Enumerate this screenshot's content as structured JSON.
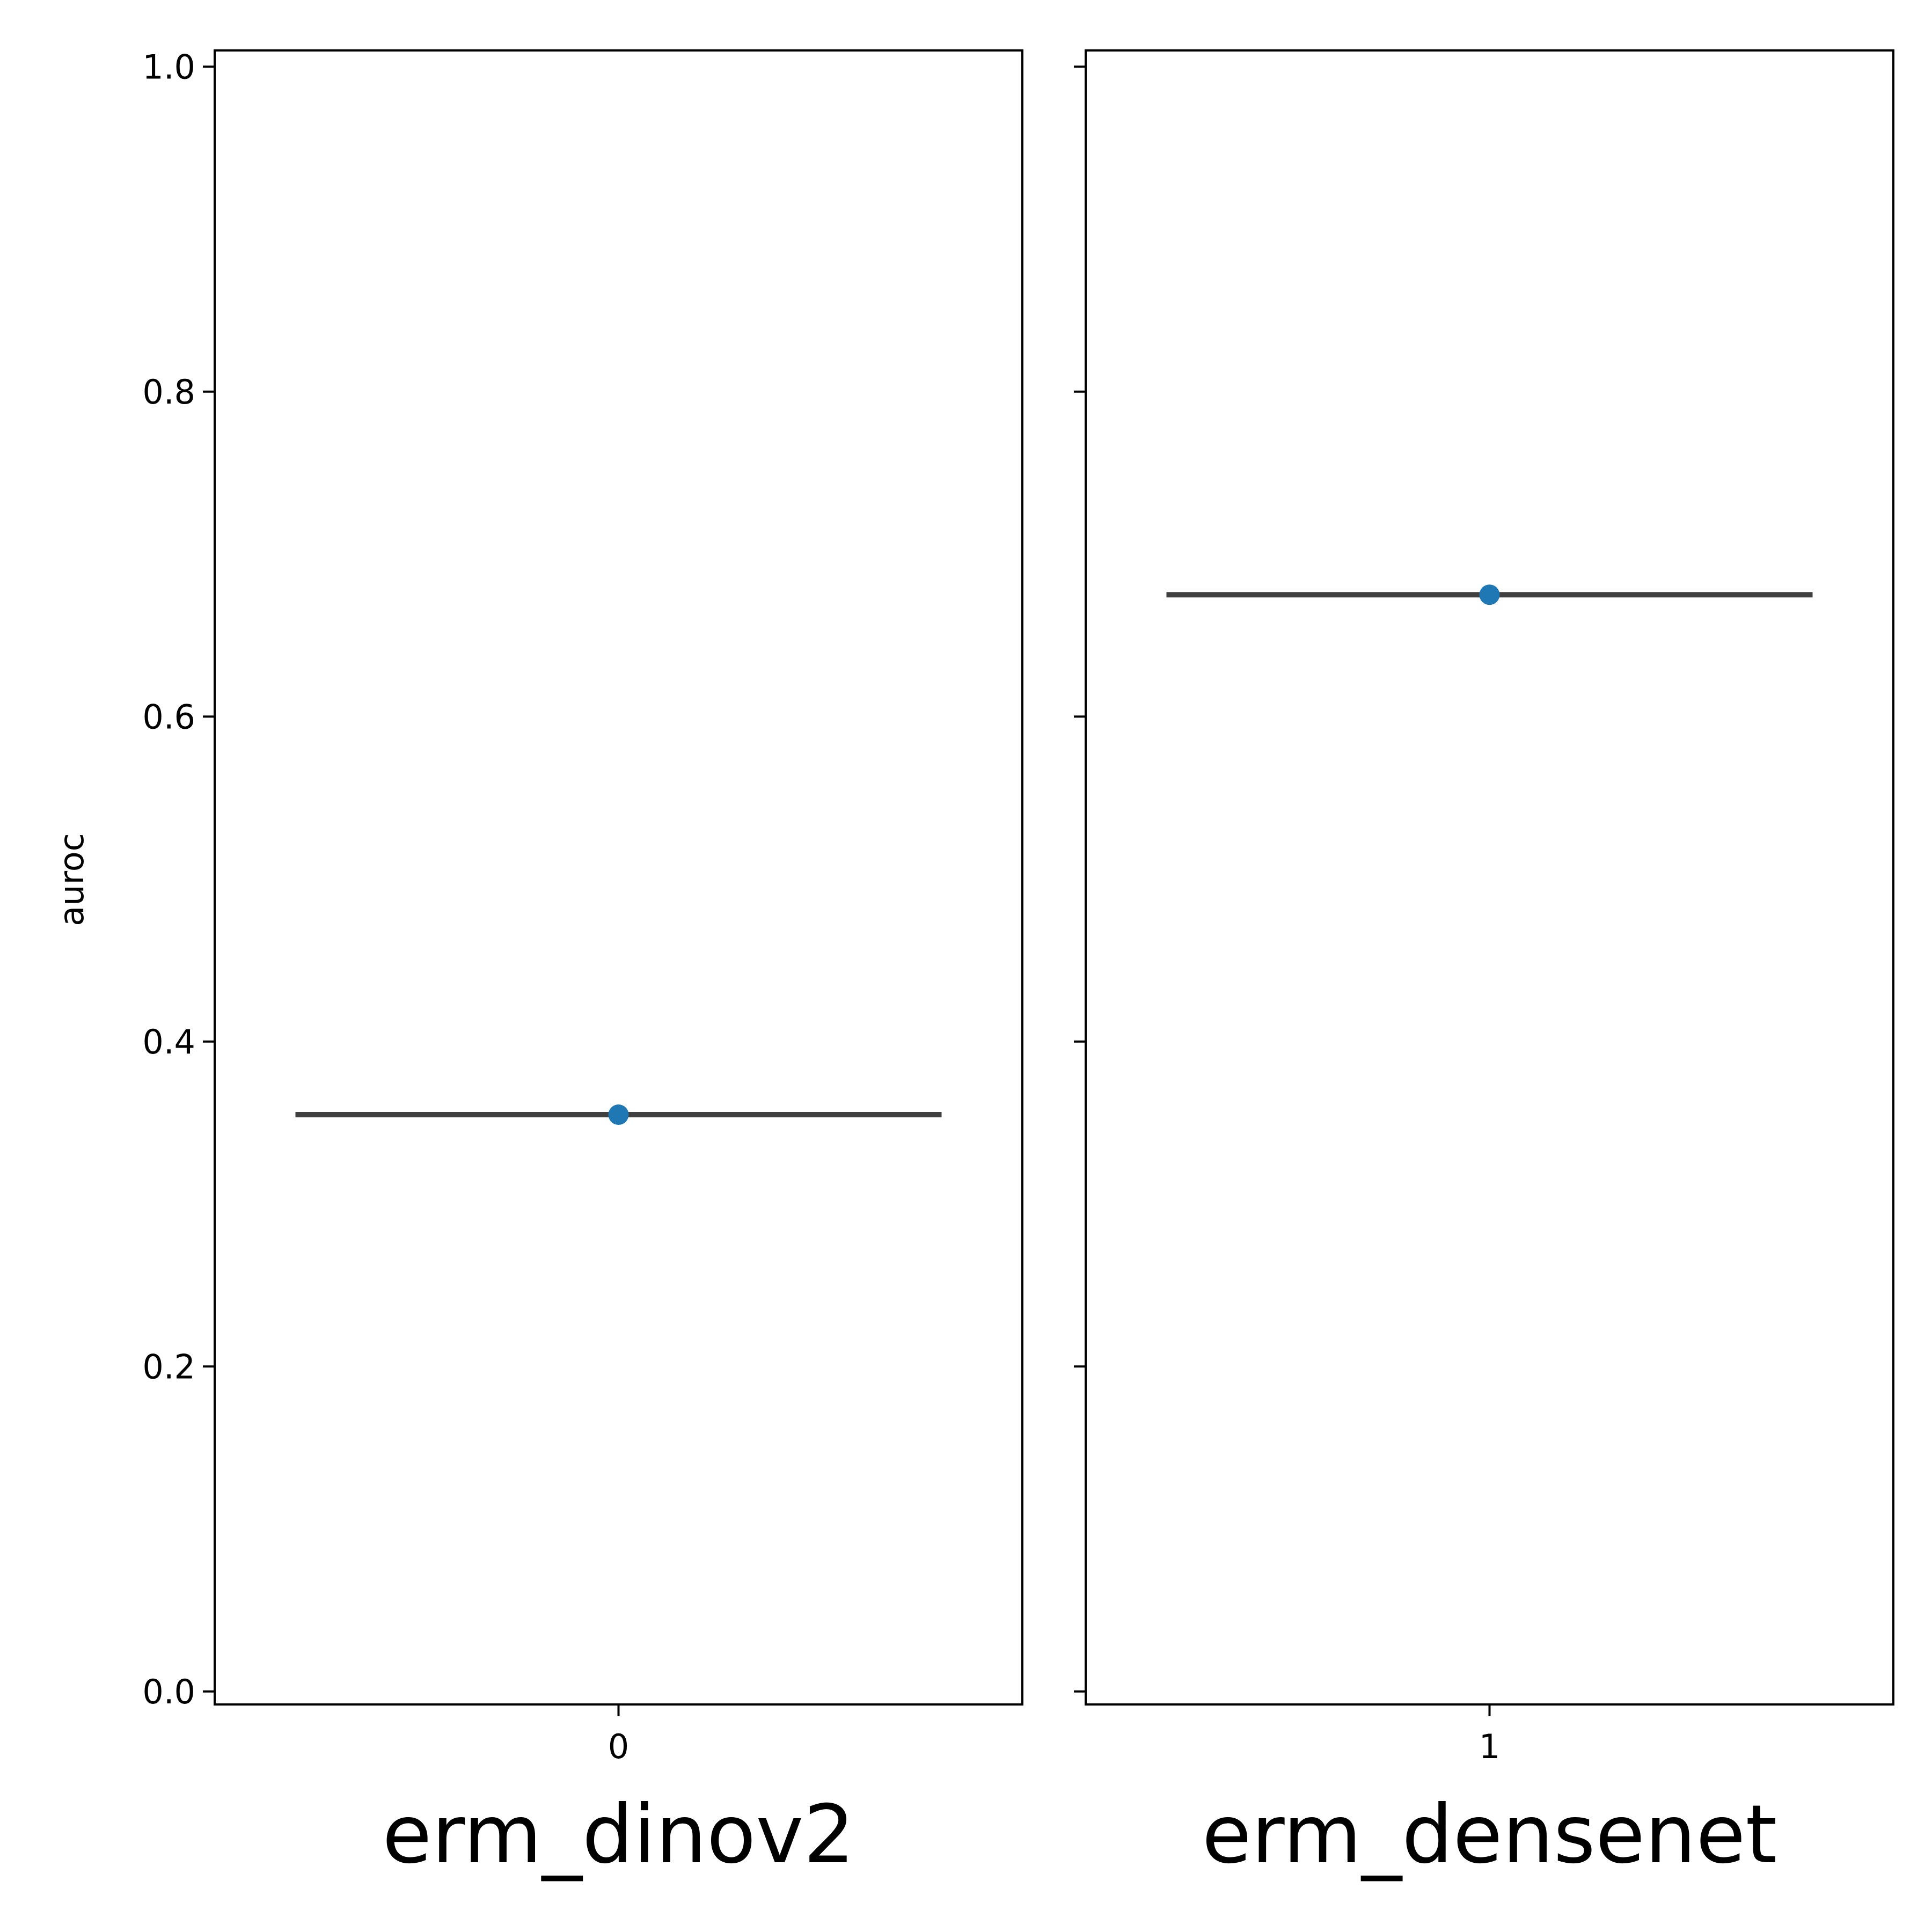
{
  "chart_data": {
    "type": "scatter",
    "ylabel": "auroc",
    "ylim": [
      -0.008,
      1.01
    ],
    "yticks": [
      "0.0",
      "0.2",
      "0.4",
      "0.6",
      "0.8",
      "1.0"
    ],
    "shared_y": true,
    "grid": false,
    "panels": [
      {
        "name": "erm_dinov2",
        "categories": [
          "0"
        ],
        "values": [
          0.355
        ],
        "line_value": 0.355
      },
      {
        "name": "erm_densenet",
        "categories": [
          "1"
        ],
        "values": [
          0.675
        ],
        "line_value": 0.675
      }
    ],
    "point_color": "#1f77b4",
    "line_color": "#404040",
    "axis_color": "#000000"
  }
}
